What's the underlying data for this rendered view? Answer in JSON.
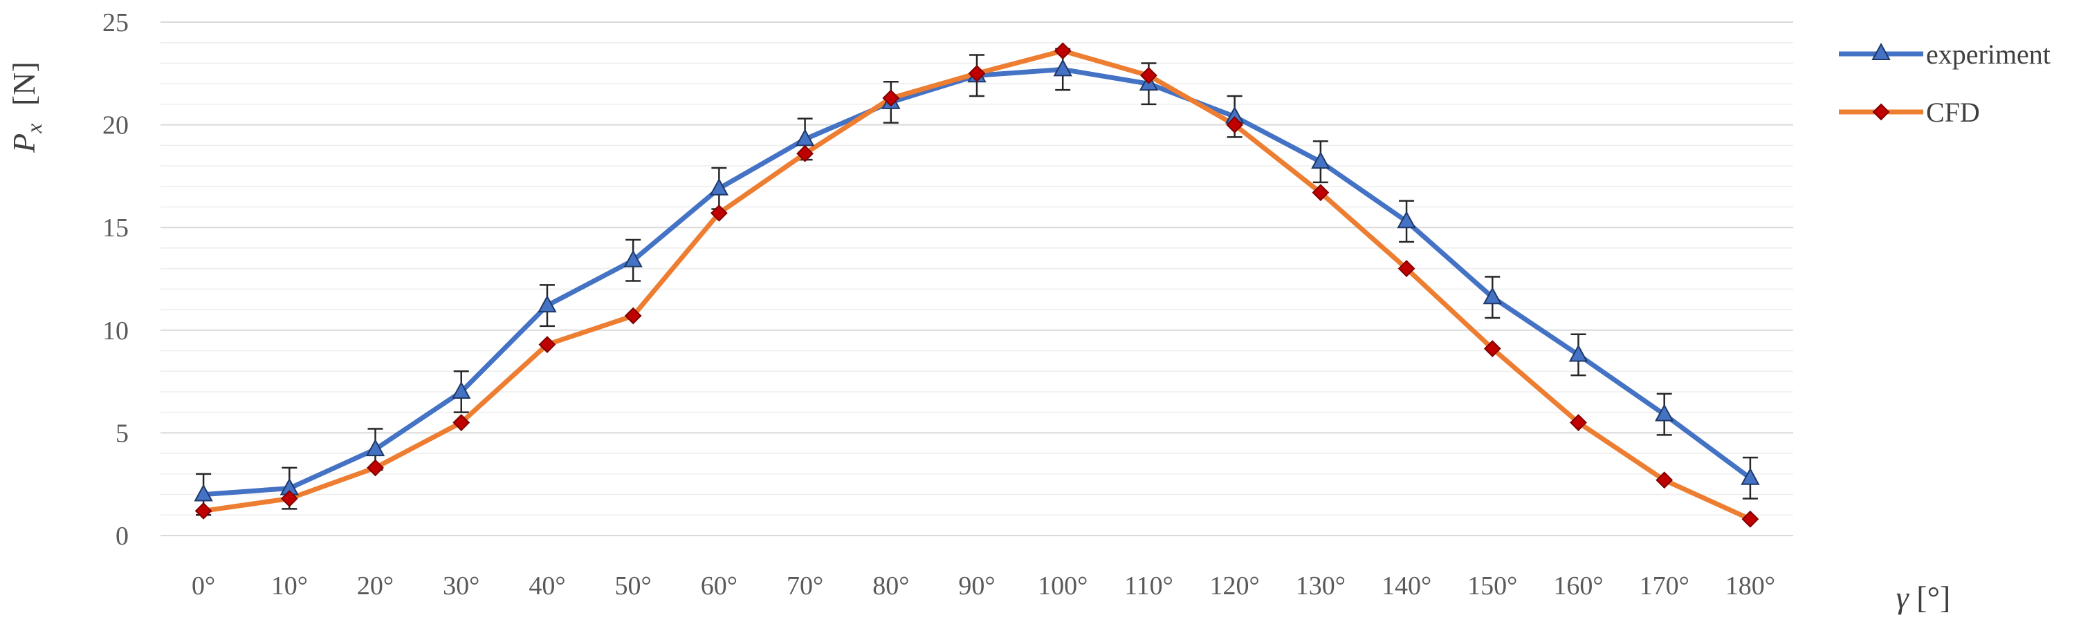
{
  "chart_data": {
    "type": "line",
    "categories": [
      "0°",
      "10°",
      "20°",
      "30°",
      "40°",
      "50°",
      "60°",
      "70°",
      "80°",
      "90°",
      "100°",
      "110°",
      "120°",
      "130°",
      "140°",
      "150°",
      "160°",
      "170°",
      "180°"
    ],
    "x": [
      0,
      10,
      20,
      30,
      40,
      50,
      60,
      70,
      80,
      90,
      100,
      110,
      120,
      130,
      140,
      150,
      160,
      170,
      180
    ],
    "ylabel_main": "P",
    "ylabel_sub": "x",
    "ylabel_unit": "[N]",
    "xlabel_main": "γ",
    "xlabel_unit": "[°]",
    "ylim": [
      0,
      25
    ],
    "yticks": [
      0,
      5,
      10,
      15,
      20,
      25
    ],
    "grid": true,
    "legend_position": "top-right",
    "series": [
      {
        "name": "experiment",
        "color": "#4472C4",
        "marker": "triangle",
        "marker_color": "#4472C4",
        "values": [
          2.0,
          2.3,
          4.2,
          7.0,
          11.2,
          13.4,
          16.9,
          19.3,
          21.1,
          22.4,
          22.7,
          22.0,
          20.4,
          18.2,
          15.3,
          11.6,
          8.8,
          5.9,
          2.8
        ],
        "error": [
          1.0,
          1.0,
          1.0,
          1.0,
          1.0,
          1.0,
          1.0,
          1.0,
          1.0,
          1.0,
          1.0,
          1.0,
          1.0,
          1.0,
          1.0,
          1.0,
          1.0,
          1.0,
          1.0
        ]
      },
      {
        "name": "CFD",
        "color": "#ED7D31",
        "marker": "diamond",
        "marker_color": "#C00000",
        "values": [
          1.2,
          1.8,
          3.3,
          5.5,
          9.3,
          10.7,
          15.7,
          18.6,
          21.3,
          22.5,
          23.6,
          22.4,
          20.0,
          16.7,
          13.0,
          9.1,
          5.5,
          2.7,
          0.8
        ]
      }
    ]
  }
}
